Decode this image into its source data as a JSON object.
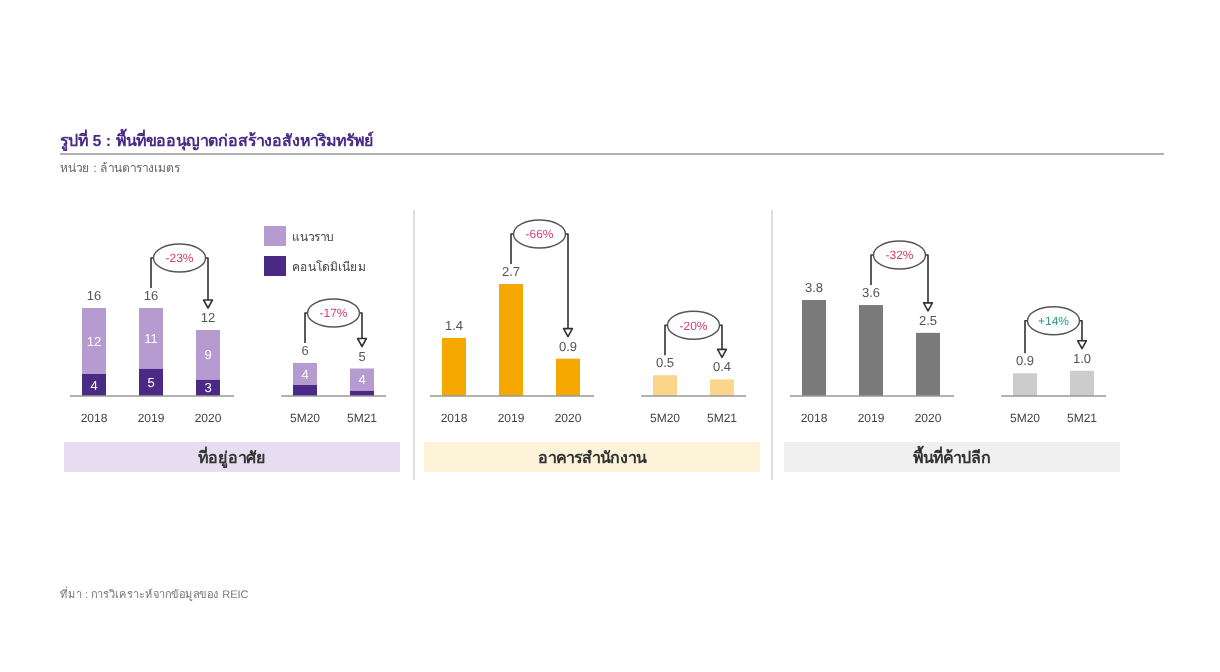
{
  "chart_data": [
    {
      "type": "bar",
      "stacked": true,
      "title": "รูปที่ 5 : พื้นที่ขออนุญาตก่อสร้างอสังหาริมทรัพย์",
      "subtitle": "หน่วย : ล้านตารางเมตร",
      "xlabel": "ที่อยู่อาศัย",
      "categories": [
        "2018",
        "2019",
        "2020",
        "5M20",
        "5M21"
      ],
      "series": [
        {
          "name": "คอนโดมิเนียม",
          "color": "#4b2a85",
          "values": [
            4,
            5,
            3,
            2,
            1
          ],
          "value_labels": [
            "4",
            "5",
            "3",
            null,
            null
          ]
        },
        {
          "name": "แนวราบ",
          "color": "#b59bd0",
          "values": [
            12,
            11,
            9,
            4,
            4
          ],
          "value_labels": [
            "12",
            "11",
            "9",
            "4",
            "4"
          ]
        }
      ],
      "totals": [
        "16",
        "16",
        "12",
        "6",
        "5"
      ],
      "legend": "top right",
      "annotations": [
        "-23%",
        "-17%",
        "ที่มา : การวิเคราะห์จากข้อมูลของ REIC"
      ]
    },
    {
      "type": "bar",
      "xlabel": "อาคารสำนักงาน",
      "categories": [
        "2018",
        "2019",
        "2020",
        "5M20",
        "5M21"
      ],
      "values": [
        1.4,
        2.7,
        0.9,
        0.5,
        0.4
      ],
      "colors": [
        "#f5a800",
        "#f5a800",
        "#f5a800",
        "#fbd58a",
        "#fbd58a"
      ],
      "value_labels": [
        "1.4",
        "2.7",
        "0.9",
        "0.5",
        "0.4"
      ],
      "annotations": [
        "-66%",
        "-20%"
      ]
    },
    {
      "type": "bar",
      "xlabel": "พื้นที่ค้าปลีก",
      "categories": [
        "2018",
        "2019",
        "2020",
        "5M20",
        "5M21"
      ],
      "values": [
        3.8,
        3.6,
        2.5,
        0.9,
        1.0
      ],
      "colors": [
        "#7a7a7a",
        "#7a7a7a",
        "#7a7a7a",
        "#cccccc",
        "#cccccc"
      ],
      "value_labels": [
        "3.8",
        "3.6",
        "2.5",
        "0.9",
        "1.0"
      ],
      "annotations": [
        "-32%",
        "+14%"
      ]
    }
  ]
}
